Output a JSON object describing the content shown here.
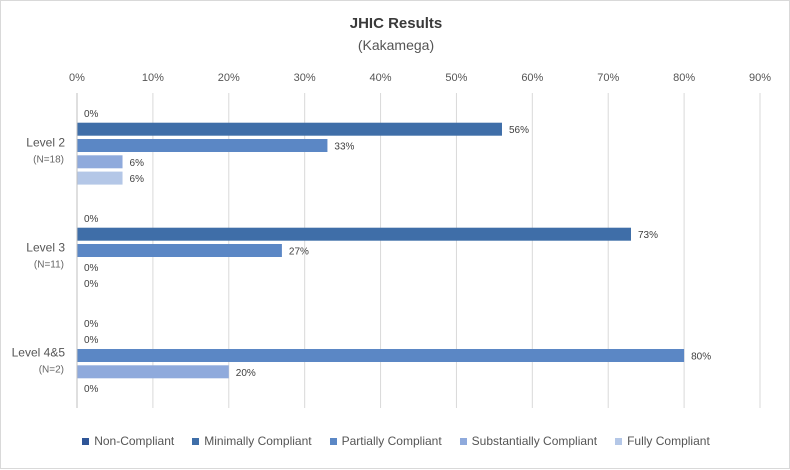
{
  "chart_data": {
    "type": "bar",
    "orientation": "horizontal",
    "title": "JHIC Results",
    "subtitle": "(Kakamega)",
    "xlim": [
      0,
      90
    ],
    "x_ticks": [
      "0%",
      "10%",
      "20%",
      "30%",
      "40%",
      "50%",
      "60%",
      "70%",
      "80%",
      "90%"
    ],
    "grid": true,
    "legend_position": "bottom",
    "categories": [
      {
        "label": "Level 2",
        "sub": "(N=18)"
      },
      {
        "label": "Level 3",
        "sub": "(N=11)"
      },
      {
        "label": "Level 4&5",
        "sub": "(N=2)"
      }
    ],
    "series": [
      {
        "name": "Non-Compliant",
        "color": "#2f5597",
        "values": [
          0,
          0,
          0
        ],
        "labels": [
          "0%",
          "0%",
          "0%"
        ]
      },
      {
        "name": "Minimally Compliant",
        "color": "#3f6ea8",
        "values": [
          56,
          73,
          0
        ],
        "labels": [
          "56%",
          "73%",
          "0%"
        ]
      },
      {
        "name": "Partially Compliant",
        "color": "#5b87c5",
        "values": [
          33,
          27,
          80
        ],
        "labels": [
          "33%",
          "27%",
          "80%"
        ]
      },
      {
        "name": "Substantially Compliant",
        "color": "#8faadc",
        "values": [
          6,
          0,
          20
        ],
        "labels": [
          "6%",
          "0%",
          "20%"
        ]
      },
      {
        "name": "Fully Compliant",
        "color": "#b4c7e7",
        "values": [
          6,
          0,
          0
        ],
        "labels": [
          "6%",
          "0%",
          "0%"
        ]
      }
    ]
  }
}
